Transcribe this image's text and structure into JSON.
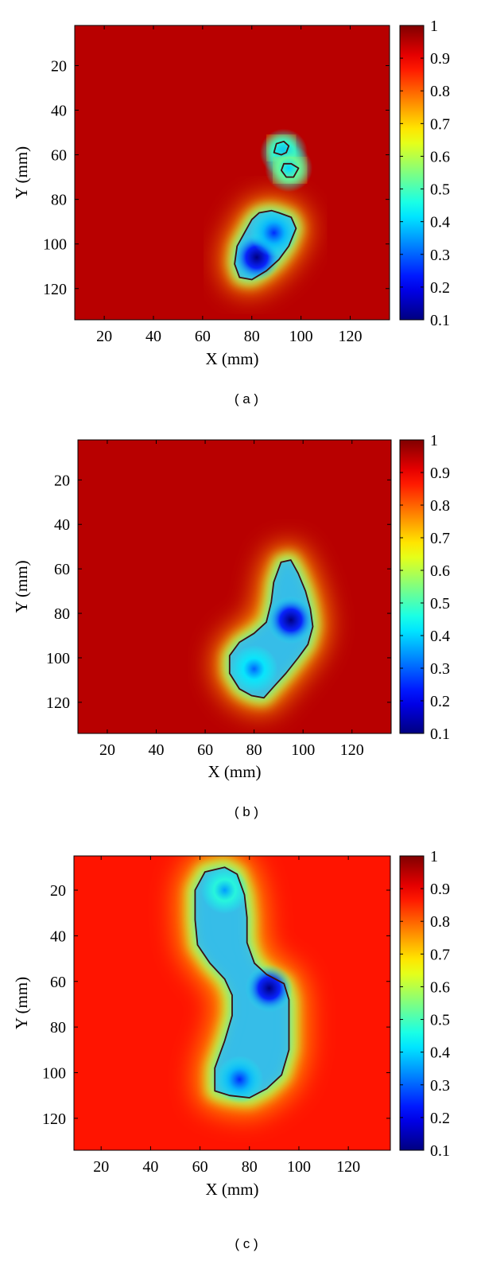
{
  "chart_data": [
    {
      "type": "heatmap",
      "caption": "( a )",
      "xlabel": "X (mm)",
      "ylabel": "Y (mm)",
      "xlim": [
        8,
        136
      ],
      "ylim": [
        134,
        2
      ],
      "x_ticks": [
        20,
        40,
        60,
        80,
        100,
        120
      ],
      "y_ticks": [
        20,
        40,
        60,
        80,
        100,
        120
      ],
      "colorbar": {
        "min": 0.1,
        "max": 1,
        "ticks": [
          1,
          0.9,
          0.8,
          0.7,
          0.6,
          0.5,
          0.4,
          0.3,
          0.2,
          0.1
        ]
      },
      "background_value": 0.95,
      "regions": [
        {
          "shape": "blob",
          "contour": [
            [
              83,
              86
            ],
            [
              88,
              85
            ],
            [
              91,
              86
            ],
            [
              96,
              88
            ],
            [
              98,
              93
            ],
            [
              95,
              101
            ],
            [
              91,
              107
            ],
            [
              86,
              112
            ],
            [
              80,
              116
            ],
            [
              75,
              115
            ],
            [
              73,
              109
            ],
            [
              74,
              101
            ],
            [
              77,
              95
            ],
            [
              80,
              89
            ]
          ],
          "minima": [
            {
              "x": 82,
              "y": 106,
              "value": 0.1
            },
            {
              "x": 89,
              "y": 95,
              "value": 0.25
            }
          ],
          "halo": 16
        },
        {
          "shape": "blob",
          "contour": [
            [
              90,
              55
            ],
            [
              93,
              54
            ],
            [
              95,
              56
            ],
            [
              94,
              59
            ],
            [
              92,
              60
            ],
            [
              89,
              59
            ]
          ],
          "minima": [
            {
              "x": 93,
              "y": 59,
              "value": 0.35
            }
          ],
          "halo": 10
        },
        {
          "shape": "blob",
          "contour": [
            [
              93,
              64
            ],
            [
              96,
              64
            ],
            [
              99,
              66
            ],
            [
              97,
              70
            ],
            [
              94,
              70
            ],
            [
              92,
              67
            ]
          ],
          "minima": [
            {
              "x": 95,
              "y": 66,
              "value": 0.4
            }
          ],
          "halo": 10
        }
      ]
    },
    {
      "type": "heatmap",
      "caption": "( b )",
      "xlabel": "X (mm)",
      "ylabel": "Y (mm)",
      "xlim": [
        8,
        136
      ],
      "ylim": [
        134,
        2
      ],
      "x_ticks": [
        20,
        40,
        60,
        80,
        100,
        120
      ],
      "y_ticks": [
        20,
        40,
        60,
        80,
        100,
        120
      ],
      "colorbar": {
        "min": 0.1,
        "max": 1,
        "ticks": [
          1,
          0.9,
          0.8,
          0.7,
          0.6,
          0.5,
          0.4,
          0.3,
          0.2,
          0.1
        ]
      },
      "background_value": 0.95,
      "regions": [
        {
          "shape": "blob",
          "contour": [
            [
              91,
              57
            ],
            [
              95,
              56
            ],
            [
              98,
              62
            ],
            [
              101,
              70
            ],
            [
              103,
              78
            ],
            [
              104,
              86
            ],
            [
              102,
              94
            ],
            [
              98,
              100
            ],
            [
              93,
              107
            ],
            [
              88,
              113
            ],
            [
              84,
              118
            ],
            [
              79,
              117
            ],
            [
              74,
              114
            ],
            [
              70,
              107
            ],
            [
              70,
              99
            ],
            [
              74,
              93
            ],
            [
              80,
              89
            ],
            [
              85,
              84
            ],
            [
              87,
              75
            ],
            [
              88,
              66
            ]
          ],
          "minima": [
            {
              "x": 95,
              "y": 83,
              "value": 0.1
            },
            {
              "x": 80,
              "y": 105,
              "value": 0.3
            }
          ],
          "halo": 18
        }
      ]
    },
    {
      "type": "heatmap",
      "caption": "( c )",
      "xlabel": "X (mm)",
      "ylabel": "Y (mm)",
      "xlim": [
        9,
        137
      ],
      "ylim": [
        134,
        5
      ],
      "x_ticks": [
        20,
        40,
        60,
        80,
        100,
        120
      ],
      "y_ticks": [
        20,
        40,
        60,
        80,
        100,
        120
      ],
      "colorbar": {
        "min": 0.1,
        "max": 1,
        "ticks": [
          1,
          0.9,
          0.8,
          0.7,
          0.6,
          0.5,
          0.4,
          0.3,
          0.2,
          0.1
        ]
      },
      "background_value": 0.87,
      "regions": [
        {
          "shape": "blob",
          "contour": [
            [
              62,
              12
            ],
            [
              70,
              10
            ],
            [
              75,
              13
            ],
            [
              78,
              22
            ],
            [
              79,
              32
            ],
            [
              79,
              43
            ],
            [
              82,
              52
            ],
            [
              87,
              57
            ],
            [
              94,
              61
            ],
            [
              96,
              68
            ],
            [
              96,
              78
            ],
            [
              96,
              90
            ],
            [
              93,
              101
            ],
            [
              87,
              107
            ],
            [
              80,
              111
            ],
            [
              72,
              110
            ],
            [
              66,
              108
            ],
            [
              66,
              98
            ],
            [
              70,
              86
            ],
            [
              73,
              75
            ],
            [
              73,
              66
            ],
            [
              70,
              59
            ],
            [
              64,
              52
            ],
            [
              59,
              44
            ],
            [
              58,
              33
            ],
            [
              58,
              20
            ]
          ],
          "minima": [
            {
              "x": 70,
              "y": 20,
              "value": 0.35
            },
            {
              "x": 88,
              "y": 63,
              "value": 0.1
            },
            {
              "x": 76,
              "y": 103,
              "value": 0.25
            }
          ],
          "halo": 22
        }
      ]
    }
  ]
}
